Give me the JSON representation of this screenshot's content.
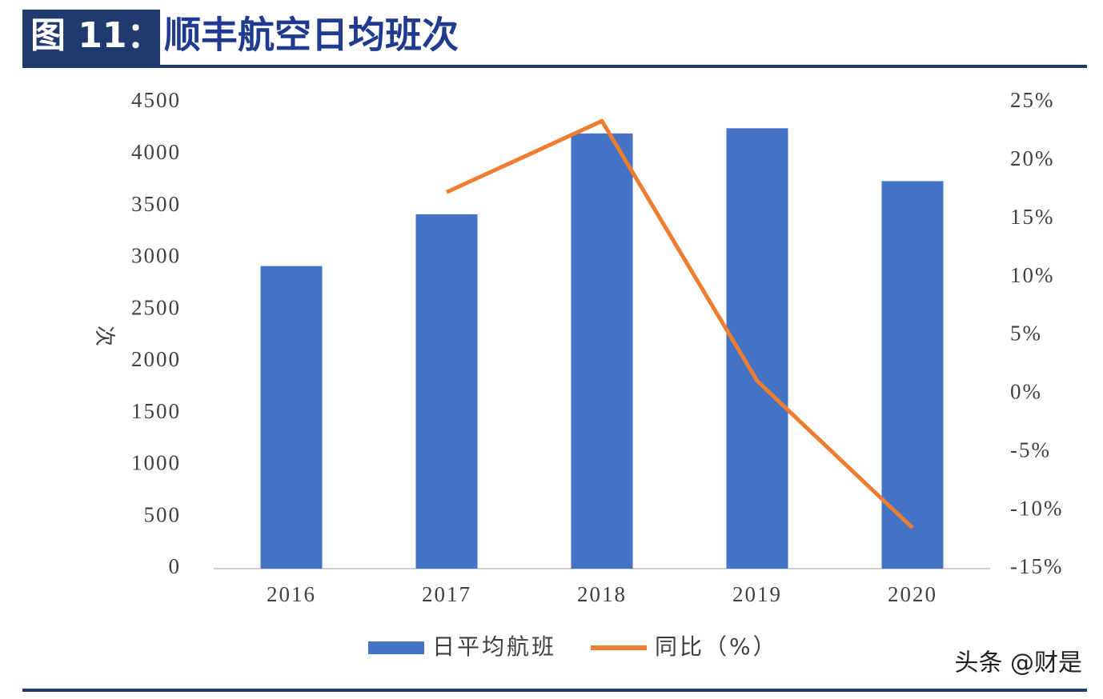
{
  "chart_data": {
    "type": "bar-line",
    "figure_label": "图 11：",
    "title": "顺丰航空日均班次",
    "y_label": "次",
    "categories": [
      "2016",
      "2017",
      "2018",
      "2019",
      "2020"
    ],
    "series": [
      {
        "name": "日平均航班",
        "type": "bar",
        "color": "#4472c4",
        "values": [
          2920,
          3420,
          4200,
          4250,
          3740
        ]
      },
      {
        "name": "同比（%）",
        "type": "line",
        "axis": "y2",
        "color": "#ed7d31",
        "values": [
          null,
          17.3,
          23.4,
          1.1,
          -11.5
        ]
      }
    ],
    "ylim": [
      0,
      4500
    ],
    "yticks": [
      0,
      500,
      1000,
      1500,
      2000,
      2500,
      3000,
      3500,
      4000,
      4500
    ],
    "y2lim": [
      -15,
      25
    ],
    "y2ticks": [
      {
        "value": -15,
        "label": "-15%"
      },
      {
        "value": -10,
        "label": "-10%"
      },
      {
        "value": -5,
        "label": "-5%"
      },
      {
        "value": 0,
        "label": "0%"
      },
      {
        "value": 5,
        "label": "5%"
      },
      {
        "value": 10,
        "label": "10%"
      },
      {
        "value": 15,
        "label": "15%"
      },
      {
        "value": 20,
        "label": "20%"
      },
      {
        "value": 25,
        "label": "25%"
      }
    ],
    "legend": "bottom",
    "watermark": "头条 @财是"
  }
}
